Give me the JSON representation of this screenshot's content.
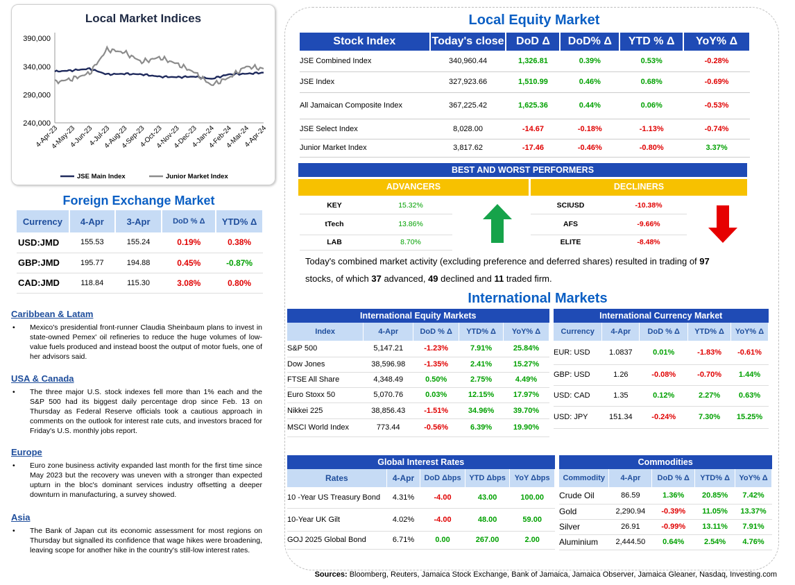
{
  "chart": {
    "title": "Local Market Indices",
    "y_ticks": [
      "390,000",
      "340,000",
      "290,000",
      "240,000"
    ],
    "x_ticks": [
      "4-Apr-23",
      "4-May-23",
      "4-Jun-23",
      "4-Jul-23",
      "4-Aug-23",
      "4-Sep-23",
      "4-Oct-23",
      "4-Nov-23",
      "4-Dec-23",
      "4-Jan-24",
      "4-Feb-24",
      "4-Mar-24",
      "4-Apr-24"
    ],
    "legend": [
      "JSE Main Index",
      "Junior Market Index"
    ]
  },
  "chart_data": {
    "type": "line",
    "title": "Local Market Indices",
    "ylim": [
      240000,
      400000
    ],
    "x": [
      "4-Apr-23",
      "4-May-23",
      "4-Jun-23",
      "4-Jul-23",
      "4-Aug-23",
      "4-Sep-23",
      "4-Oct-23",
      "4-Nov-23",
      "4-Dec-23",
      "4-Jan-24",
      "4-Feb-24",
      "4-Mar-24",
      "4-Apr-24"
    ],
    "series": [
      {
        "name": "JSE Main Index",
        "color": "#1f2a5c",
        "values": [
          331000,
          333000,
          336000,
          326000,
          327000,
          326000,
          322000,
          321000,
          322000,
          318000,
          326000,
          327000,
          329000
        ]
      },
      {
        "name": "Junior Market Index",
        "color": "#8c8c8c",
        "values": [
          312000,
          318000,
          328000,
          370000,
          365000,
          348000,
          356000,
          345000,
          330000,
          307000,
          320000,
          340000,
          336000
        ]
      }
    ]
  },
  "fx": {
    "title": "Foreign Exchange Market",
    "headers": [
      "Currency",
      "4-Apr",
      "3-Apr",
      "DoD % Δ",
      "YTD% Δ"
    ],
    "rows": [
      {
        "label": "USD:JMD",
        "c1": "155.53",
        "c2": "155.24",
        "dod": "0.19%",
        "ytd": "0.38%"
      },
      {
        "label": "GBP:JMD",
        "c1": "195.77",
        "c2": "194.88",
        "dod": "0.45%",
        "ytd": "-0.87%"
      },
      {
        "label": "CAD:JMD",
        "c1": "118.84",
        "c2": "115.30",
        "dod": "3.08%",
        "ytd": "0.80%"
      }
    ]
  },
  "news": [
    {
      "heading": "Caribbean & Latam",
      "text": "Mexico's presidential front-runner Claudia Sheinbaum plans to invest in state-owned Pemex' oil refineries to reduce the huge volumes of low-value fuels produced and instead boost the output of motor fuels, one of her advisors said."
    },
    {
      "heading": "USA & Canada",
      "text": "The three major U.S. stock indexes fell more than 1% each and the S&P 500 had its biggest daily percentage drop since Feb. 13 on Thursday as Federal Reserve officials took a cautious approach in comments on the outlook for interest rate cuts, and investors braced for Friday's U.S. monthly jobs report."
    },
    {
      "heading": "Europe",
      "text": "Euro zone business activity expanded last month for the first time since May 2023 but the recovery was uneven with a stronger than expected upturn in the bloc's dominant services industry offsetting a deeper downturn in manufacturing, a survey showed."
    },
    {
      "heading": "Asia",
      "text": "The Bank of Japan cut its economic assessment for most regions on Thursday but signalled its confidence that wage hikes were broadening, leaving scope for another hike in the country's still-low interest rates."
    }
  ],
  "local_equity": {
    "title": "Local Equity Market",
    "headers": [
      "Stock Index",
      "Today's close",
      "DoD  Δ",
      "DoD% Δ",
      "YTD % Δ",
      "YoY% Δ"
    ],
    "rows": [
      {
        "label": "JSE Combined Index",
        "close": "340,960.44",
        "dod": "1,326.81",
        "dodp": "0.39%",
        "ytd": "0.53%",
        "yoy": "-0.28%"
      },
      {
        "label": "JSE Index",
        "close": "327,923.66",
        "dod": "1,510.99",
        "dodp": "0.46%",
        "ytd": "0.68%",
        "yoy": "-0.69%"
      },
      {
        "label": "All Jamaican Composite Index",
        "close": "367,225.42",
        "dod": "1,625.36",
        "dodp": "0.44%",
        "ytd": "0.06%",
        "yoy": "-0.53%"
      },
      {
        "label": "JSE Select Index",
        "close": "8,028.00",
        "dod": "-14.67",
        "dodp": "-0.18%",
        "ytd": "-1.13%",
        "yoy": "-0.74%"
      },
      {
        "label": "Junior Market Index",
        "close": "3,817.62",
        "dod": "-17.46",
        "dodp": "-0.46%",
        "ytd": "-0.80%",
        "yoy": "3.37%"
      }
    ]
  },
  "performers": {
    "title": "BEST AND WORST PERFORMERS",
    "adv_label": "ADVANCERS",
    "dec_label": "DECLINERS",
    "advancers": [
      {
        "sym": "KEY",
        "pct": "15.32%"
      },
      {
        "sym": "tTech",
        "pct": "13.86%"
      },
      {
        "sym": "LAB",
        "pct": "8.70%"
      }
    ],
    "decliners": [
      {
        "sym": "SCIUSD",
        "pct": "-10.38%"
      },
      {
        "sym": "AFS",
        "pct": "-9.66%"
      },
      {
        "sym": "ELITE",
        "pct": "-8.48%"
      }
    ]
  },
  "summary": {
    "t1": "Today's combined market activity (excluding preference and deferred shares) resulted in trading of ",
    "n1": "97",
    "t2": "stocks, of which ",
    "n2": "37",
    "t3": " advanced, ",
    "n3": "49",
    "t4": " declined and ",
    "n4": "11",
    "t5": " traded firm."
  },
  "intl_title": "International Markets",
  "intl_equity": {
    "title": "International Equity Markets",
    "headers": [
      "Index",
      "4-Apr",
      "DoD % Δ",
      "YTD% Δ",
      "YoY% Δ"
    ],
    "rows": [
      {
        "label": "S&P 500",
        "v": "5,147.21",
        "dod": "-1.23%",
        "ytd": "7.91%",
        "yoy": "25.84%"
      },
      {
        "label": "Dow Jones",
        "v": "38,596.98",
        "dod": "-1.35%",
        "ytd": "2.41%",
        "yoy": "15.27%"
      },
      {
        "label": "FTSE All Share",
        "v": "4,348.49",
        "dod": "0.50%",
        "ytd": "2.75%",
        "yoy": "4.49%"
      },
      {
        "label": "Euro Stoxx 50",
        "v": "5,070.76",
        "dod": "0.03%",
        "ytd": "12.15%",
        "yoy": "17.97%"
      },
      {
        "label": "Nikkei 225",
        "v": "38,856.43",
        "dod": "-1.51%",
        "ytd": "34.96%",
        "yoy": "39.70%"
      },
      {
        "label": "MSCI World Index",
        "v": "773.44",
        "dod": "-0.56%",
        "ytd": "6.39%",
        "yoy": "19.90%"
      }
    ]
  },
  "intl_currency": {
    "title": "International Currency Market",
    "headers": [
      "Currency",
      "4-Apr",
      "DoD % Δ",
      "YTD% Δ",
      "YoY% Δ"
    ],
    "rows": [
      {
        "label": "EUR: USD",
        "v": "1.0837",
        "dod": "0.01%",
        "ytd": "-1.83%",
        "yoy": "-0.61%"
      },
      {
        "label": "GBP: USD",
        "v": "1.26",
        "dod": "-0.08%",
        "ytd": "-0.70%",
        "yoy": "1.44%"
      },
      {
        "label": "USD: CAD",
        "v": "1.35",
        "dod": "0.12%",
        "ytd": "2.27%",
        "yoy": "0.63%"
      },
      {
        "label": "USD: JPY",
        "v": "151.34",
        "dod": "-0.24%",
        "ytd": "7.30%",
        "yoy": "15.25%"
      }
    ]
  },
  "rates": {
    "title": "Global Interest Rates",
    "headers": [
      "Rates",
      "4-Apr",
      "DoD Δbps",
      "YTD Δbps",
      "YoY Δbps"
    ],
    "rows": [
      {
        "label": "10 -Year US Treasury Bond",
        "v": "4.31%",
        "dod": "-4.00",
        "ytd": "43.00",
        "yoy": "100.00"
      },
      {
        "label": "10-Year UK Gilt",
        "v": "4.02%",
        "dod": "-4.00",
        "ytd": "48.00",
        "yoy": "59.00"
      },
      {
        "label": "GOJ 2025 Global Bond",
        "v": "6.71%",
        "dod": "0.00",
        "ytd": "267.00",
        "yoy": "2.00"
      }
    ]
  },
  "commodities": {
    "title": "Commodities",
    "headers": [
      "Commodity",
      "4-Apr",
      "DoD % Δ",
      "YTD% Δ",
      "YoY% Δ"
    ],
    "rows": [
      {
        "label": "Crude Oil",
        "v": "86.59",
        "dod": "1.36%",
        "ytd": "20.85%",
        "yoy": "7.42%"
      },
      {
        "label": "Gold",
        "v": "2,290.94",
        "dod": "-0.39%",
        "ytd": "11.05%",
        "yoy": "13.37%"
      },
      {
        "label": "Silver",
        "v": "26.91",
        "dod": "-0.99%",
        "ytd": "13.11%",
        "yoy": "7.91%"
      },
      {
        "label": "Aluminium",
        "v": "2,444.50",
        "dod": "0.64%",
        "ytd": "2.54%",
        "yoy": "4.76%"
      }
    ]
  },
  "sources": {
    "label": "Sources:",
    "text": " Bloomberg, Reuters, Jamaica Stock Exchange, Bank of Jamaica, Jamaica Observer, Jamaica Gleaner, Nasdaq, Investing.com"
  }
}
